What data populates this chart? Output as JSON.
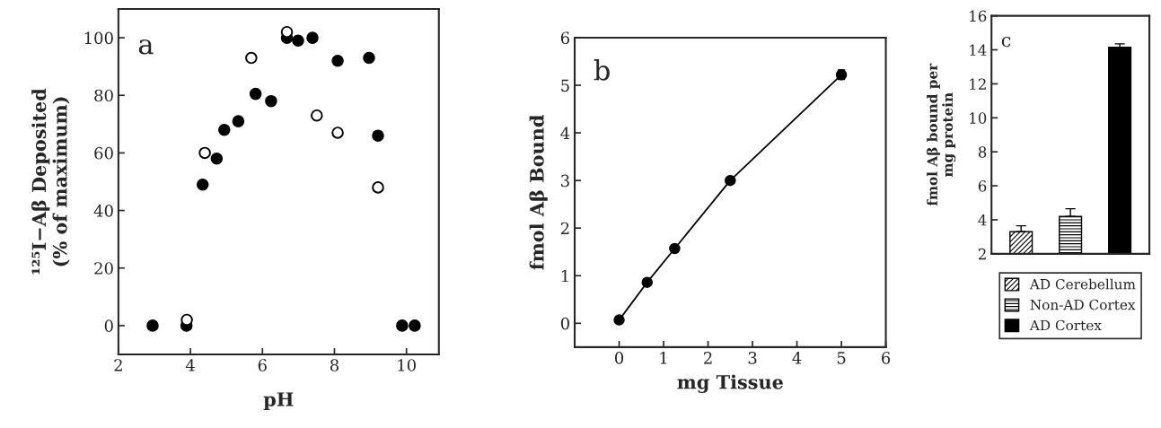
{
  "chart_data": [
    {
      "type": "scatter",
      "xlabel": "pH",
      "ylabel": "¹²⁵I−Aβ Deposited\n(% of maximum)",
      "annotations": [
        "a"
      ],
      "marker": "circle",
      "xlim": [
        2,
        10.9
      ],
      "ylim": [
        -10,
        110
      ],
      "xticks": [
        2,
        4,
        6,
        8,
        10
      ],
      "yticks": [
        0,
        20,
        40,
        60,
        80,
        100
      ],
      "grid": false,
      "legend": false,
      "series": [
        {
          "color": "#000000",
          "x": [
            2.95,
            3.89,
            4.34,
            4.73,
            4.94,
            5.33,
            5.81,
            6.24,
            6.68,
            6.99,
            7.39,
            8.09,
            8.96,
            9.21,
            9.88,
            10.23
          ],
          "values": [
            0,
            0,
            49,
            58,
            68,
            71,
            80.5,
            78,
            100,
            99,
            100,
            92,
            93,
            66,
            0,
            0
          ]
        },
        {
          "color": "#ffffff",
          "x": [
            3.9,
            4.4,
            5.69,
            6.68,
            7.51,
            8.09,
            9.21
          ],
          "values": [
            2,
            60,
            93,
            102,
            73,
            67,
            48
          ]
        }
      ]
    },
    {
      "type": "line",
      "xlabel": "mg Tissue",
      "ylabel": "fmol Aβ Bound",
      "annotations": [
        "b"
      ],
      "marker": "circle",
      "line_style": "solid",
      "xlim": [
        -1,
        6
      ],
      "ylim": [
        -0.5,
        6
      ],
      "xticks": [
        0,
        1,
        2,
        3,
        4,
        5,
        6
      ],
      "yticks": [
        0,
        1,
        2,
        3,
        4,
        5,
        6
      ],
      "grid": false,
      "legend": false,
      "series": [
        {
          "color": "#000000",
          "x": [
            0,
            0.63,
            1.25,
            2.5,
            5
          ],
          "values": [
            0.07,
            0.86,
            1.57,
            3.0,
            5.22
          ],
          "errors": [
            null,
            null,
            null,
            null,
            0.1
          ]
        }
      ]
    },
    {
      "type": "bar",
      "ylabel": "fmol Aβ bound per\nmg protein",
      "annotations": [
        "c"
      ],
      "categories": [
        null,
        null,
        null
      ],
      "ylim": [
        2,
        16
      ],
      "yticks": [
        2,
        4,
        6,
        8,
        10,
        12,
        14,
        16
      ],
      "tick_labels": "y",
      "grid": false,
      "legend": "bottom",
      "series": [
        {
          "name": "AD Cerebellum",
          "color": "#000000",
          "values": [
            3.3,
            null,
            null
          ],
          "errors": [
            [
              3.3,
              3.65
            ],
            null,
            null
          ]
        },
        {
          "name": "Non-AD Cortex",
          "color": "#000000",
          "values": [
            null,
            4.2,
            null
          ],
          "errors": [
            null,
            [
              4.2,
              4.65
            ],
            null
          ]
        },
        {
          "name": "AD Cortex",
          "color": "#000000",
          "values": [
            null,
            null,
            14.15
          ],
          "errors": [
            null,
            null,
            [
              14.15,
              14.35
            ]
          ]
        }
      ]
    }
  ]
}
